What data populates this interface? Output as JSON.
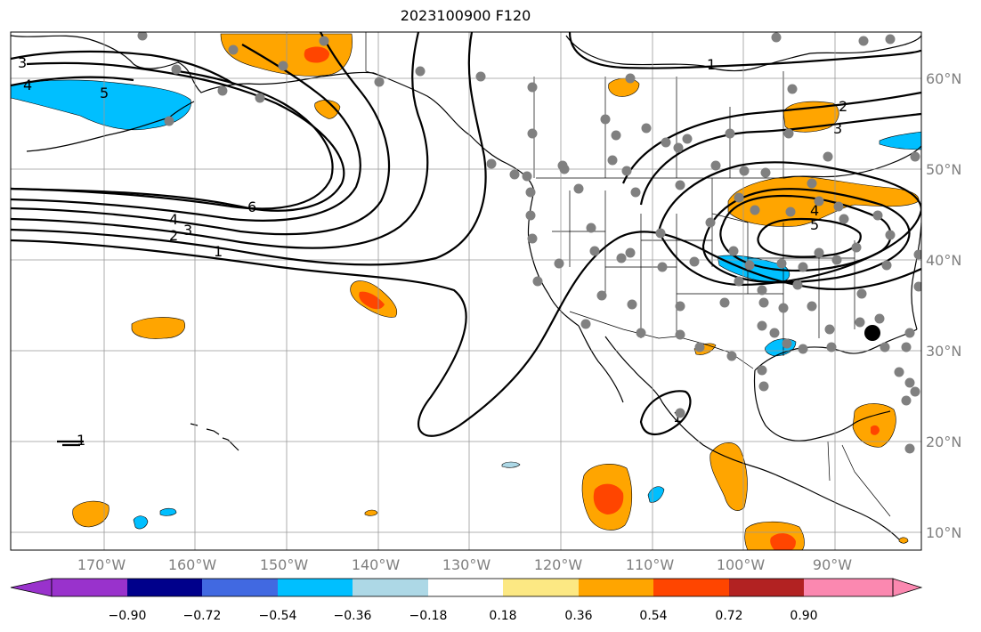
{
  "title": "2023100900 F120",
  "lon_labels": [
    "170°W",
    "160°W",
    "150°W",
    "140°W",
    "130°W",
    "120°W",
    "110°W",
    "100°W",
    "90°W"
  ],
  "lat_labels": [
    "60°N",
    "50°N",
    "40°N",
    "30°N",
    "20°N",
    "10°N"
  ],
  "colorbar": {
    "ticks": [
      "−0.90",
      "−0.72",
      "−0.54",
      "−0.36",
      "−0.18",
      "0.18",
      "0.36",
      "0.54",
      "0.72",
      "0.90"
    ],
    "colors": [
      "#9932cc",
      "#00008b",
      "#4169e1",
      "#00bfff",
      "#add8e6",
      "#ffffff",
      "#fce883",
      "#ffa500",
      "#ff4500",
      "#b22222",
      "#fb88b0"
    ]
  },
  "shading_colors": {
    "orange": "#ffa500",
    "red": "#ff4500",
    "lightblue": "#add8e6",
    "blue": "#00bfff",
    "navy": "#4169e1"
  },
  "contour_labels": [
    "3",
    "4",
    "5",
    "6",
    "4",
    "3",
    "2",
    "1",
    "1",
    "2",
    "3",
    "4",
    "5",
    "1",
    "1"
  ],
  "station_color": "#808080",
  "highlight_station_color": "#000000"
}
